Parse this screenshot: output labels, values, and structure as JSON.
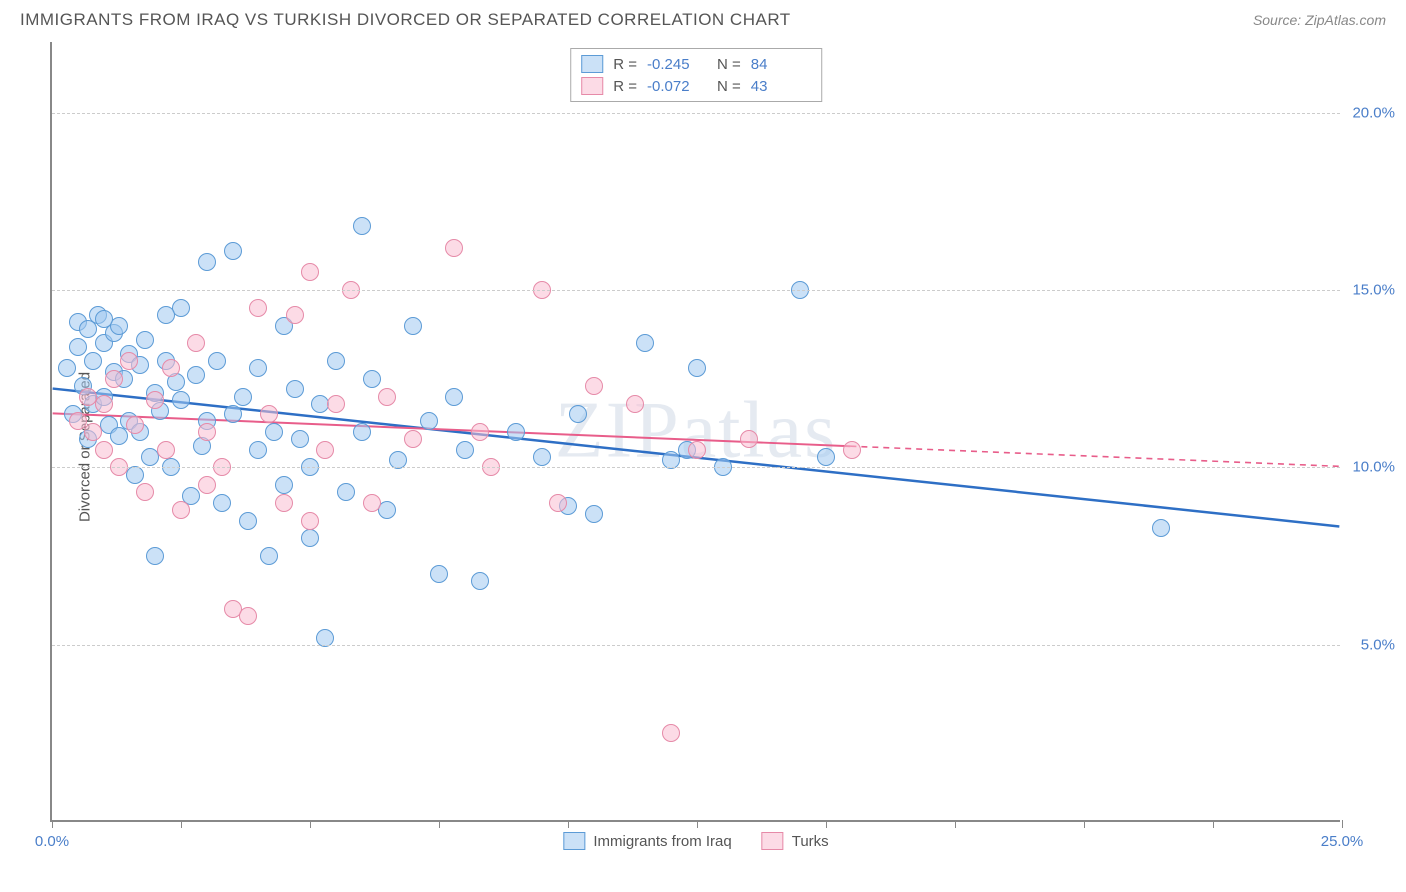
{
  "title": "IMMIGRANTS FROM IRAQ VS TURKISH DIVORCED OR SEPARATED CORRELATION CHART",
  "source": "Source: ZipAtlas.com",
  "ylabel": "Divorced or Separated",
  "watermark": "ZIPatlas",
  "chart": {
    "type": "scatter",
    "xlim": [
      0,
      25
    ],
    "ylim": [
      0,
      22
    ],
    "x_ticks": [
      0,
      2.5,
      5,
      7.5,
      10,
      12.5,
      15,
      17.5,
      20,
      22.5,
      25
    ],
    "x_tick_labels": {
      "0": "0.0%",
      "25": "25.0%"
    },
    "y_grid": [
      5,
      10,
      15,
      20
    ],
    "y_tick_labels": {
      "5": "5.0%",
      "10": "10.0%",
      "15": "15.0%",
      "20": "20.0%"
    },
    "background_color": "#ffffff",
    "grid_color": "#cccccc",
    "axis_color": "#888888",
    "tick_label_color": "#4a7ec9",
    "marker_radius": 9,
    "marker_stroke_width": 1.5,
    "series": [
      {
        "name": "Immigrants from Iraq",
        "fill": "rgba(160,200,240,0.55)",
        "stroke": "#5c9bd6",
        "R": "-0.245",
        "N": "84",
        "trend": {
          "x1": 0,
          "y1": 12.2,
          "x2": 25,
          "y2": 8.3,
          "color": "#2e6fc5",
          "width": 2.5,
          "solid_until_x": 25,
          "dash_from_x": 25
        },
        "points": [
          [
            0.3,
            12.8
          ],
          [
            0.4,
            11.5
          ],
          [
            0.5,
            13.4
          ],
          [
            0.5,
            14.1
          ],
          [
            0.6,
            12.3
          ],
          [
            0.7,
            13.9
          ],
          [
            0.8,
            11.8
          ],
          [
            0.8,
            13.0
          ],
          [
            0.9,
            14.3
          ],
          [
            1.0,
            12.0
          ],
          [
            1.0,
            13.5
          ],
          [
            1.1,
            11.2
          ],
          [
            1.2,
            12.7
          ],
          [
            1.2,
            13.8
          ],
          [
            1.3,
            10.9
          ],
          [
            1.3,
            14.0
          ],
          [
            1.4,
            12.5
          ],
          [
            1.5,
            11.3
          ],
          [
            1.5,
            13.2
          ],
          [
            1.6,
            9.8
          ],
          [
            1.7,
            12.9
          ],
          [
            1.7,
            11.0
          ],
          [
            1.8,
            13.6
          ],
          [
            1.9,
            10.3
          ],
          [
            2.0,
            12.1
          ],
          [
            2.0,
            7.5
          ],
          [
            2.1,
            11.6
          ],
          [
            2.2,
            13.0
          ],
          [
            2.3,
            10.0
          ],
          [
            2.4,
            12.4
          ],
          [
            2.5,
            14.5
          ],
          [
            2.5,
            11.9
          ],
          [
            2.7,
            9.2
          ],
          [
            2.8,
            12.6
          ],
          [
            2.9,
            10.6
          ],
          [
            3.0,
            15.8
          ],
          [
            3.0,
            11.3
          ],
          [
            3.2,
            13.0
          ],
          [
            3.3,
            9.0
          ],
          [
            3.5,
            11.5
          ],
          [
            3.5,
            16.1
          ],
          [
            3.7,
            12.0
          ],
          [
            3.8,
            8.5
          ],
          [
            4.0,
            10.5
          ],
          [
            4.0,
            12.8
          ],
          [
            4.2,
            7.5
          ],
          [
            4.3,
            11.0
          ],
          [
            4.5,
            9.5
          ],
          [
            4.5,
            14.0
          ],
          [
            4.7,
            12.2
          ],
          [
            5.0,
            10.0
          ],
          [
            5.0,
            8.0
          ],
          [
            5.2,
            11.8
          ],
          [
            5.3,
            5.2
          ],
          [
            5.5,
            13.0
          ],
          [
            5.7,
            9.3
          ],
          [
            6.0,
            16.8
          ],
          [
            6.0,
            11.0
          ],
          [
            6.2,
            12.5
          ],
          [
            6.5,
            8.8
          ],
          [
            6.7,
            10.2
          ],
          [
            7.0,
            14.0
          ],
          [
            7.3,
            11.3
          ],
          [
            7.5,
            7.0
          ],
          [
            7.8,
            12.0
          ],
          [
            8.0,
            10.5
          ],
          [
            8.3,
            6.8
          ],
          [
            9.0,
            11.0
          ],
          [
            9.5,
            10.3
          ],
          [
            10.0,
            8.9
          ],
          [
            10.2,
            11.5
          ],
          [
            10.5,
            8.7
          ],
          [
            11.5,
            13.5
          ],
          [
            12.0,
            10.2
          ],
          [
            12.3,
            10.5
          ],
          [
            12.5,
            12.8
          ],
          [
            13.0,
            10.0
          ],
          [
            14.5,
            15.0
          ],
          [
            15.0,
            10.3
          ],
          [
            21.5,
            8.3
          ],
          [
            1.0,
            14.2
          ],
          [
            0.7,
            10.8
          ],
          [
            2.2,
            14.3
          ],
          [
            4.8,
            10.8
          ]
        ]
      },
      {
        "name": "Turks",
        "fill": "rgba(250,190,210,0.55)",
        "stroke": "#e68aa8",
        "R": "-0.072",
        "N": "43",
        "trend": {
          "x1": 0,
          "y1": 11.5,
          "x2": 25,
          "y2": 10.0,
          "color": "#e85d8a",
          "width": 2,
          "solid_until_x": 15.5,
          "dash_from_x": 15.5
        },
        "points": [
          [
            0.5,
            11.3
          ],
          [
            0.7,
            12.0
          ],
          [
            0.8,
            11.0
          ],
          [
            1.0,
            10.5
          ],
          [
            1.0,
            11.8
          ],
          [
            1.2,
            12.5
          ],
          [
            1.3,
            10.0
          ],
          [
            1.5,
            13.0
          ],
          [
            1.6,
            11.2
          ],
          [
            1.8,
            9.3
          ],
          [
            2.0,
            11.9
          ],
          [
            2.2,
            10.5
          ],
          [
            2.3,
            12.8
          ],
          [
            2.5,
            8.8
          ],
          [
            2.8,
            13.5
          ],
          [
            3.0,
            11.0
          ],
          [
            3.0,
            9.5
          ],
          [
            3.3,
            10.0
          ],
          [
            3.5,
            6.0
          ],
          [
            3.8,
            5.8
          ],
          [
            4.0,
            14.5
          ],
          [
            4.2,
            11.5
          ],
          [
            4.5,
            9.0
          ],
          [
            4.7,
            14.3
          ],
          [
            5.0,
            15.5
          ],
          [
            5.0,
            8.5
          ],
          [
            5.3,
            10.5
          ],
          [
            5.5,
            11.8
          ],
          [
            5.8,
            15.0
          ],
          [
            6.2,
            9.0
          ],
          [
            6.5,
            12.0
          ],
          [
            7.0,
            10.8
          ],
          [
            7.8,
            16.2
          ],
          [
            8.3,
            11.0
          ],
          [
            8.5,
            10.0
          ],
          [
            9.5,
            15.0
          ],
          [
            9.8,
            9.0
          ],
          [
            10.5,
            12.3
          ],
          [
            11.3,
            11.8
          ],
          [
            12.0,
            2.5
          ],
          [
            12.5,
            10.5
          ],
          [
            13.5,
            10.8
          ],
          [
            15.5,
            10.5
          ]
        ]
      }
    ]
  },
  "legend_top": {
    "R_label": "R =",
    "N_label": "N ="
  },
  "legend_bottom_labels": [
    "Immigrants from Iraq",
    "Turks"
  ]
}
